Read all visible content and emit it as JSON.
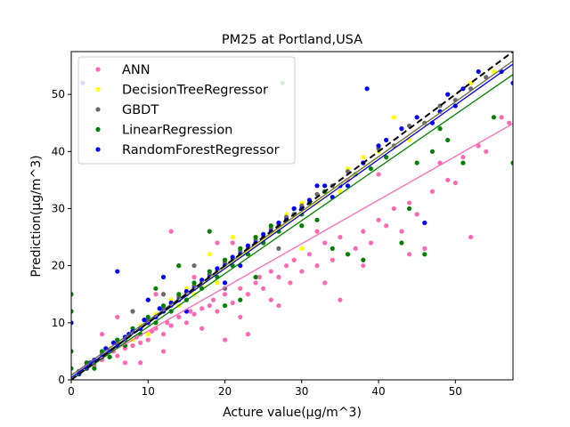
{
  "chart_data": {
    "type": "scatter",
    "title": "PM25 at Portland,USA",
    "xlabel": "Acture value(μg/m^3)",
    "ylabel": "Prediction(μg/m^3)",
    "xlim": [
      0,
      57.5
    ],
    "ylim": [
      0,
      57.5
    ],
    "xticks": [
      0,
      10,
      20,
      30,
      40,
      50
    ],
    "yticks": [
      0,
      10,
      20,
      30,
      40,
      50
    ],
    "grid": false,
    "legend_position": "top-left",
    "reference_line": {
      "style": "dashed",
      "color": "#000000",
      "slope": 1,
      "intercept": 0
    },
    "series": [
      {
        "name": "ANN",
        "color": "#ff69b4",
        "fit": {
          "slope": 0.765,
          "intercept": 0.9
        },
        "points": [
          [
            2,
            3
          ],
          [
            3,
            2.5
          ],
          [
            4,
            3.5
          ],
          [
            5,
            4
          ],
          [
            5.5,
            5
          ],
          [
            6,
            4.2
          ],
          [
            7,
            5.5
          ],
          [
            8,
            6
          ],
          [
            8.5,
            7.5
          ],
          [
            9,
            6.5
          ],
          [
            10,
            7
          ],
          [
            10.5,
            8.5
          ],
          [
            11,
            9
          ],
          [
            12,
            8
          ],
          [
            12.5,
            10
          ],
          [
            13,
            9.5
          ],
          [
            14,
            11
          ],
          [
            15,
            10
          ],
          [
            15.5,
            12
          ],
          [
            16,
            11.5
          ],
          [
            17,
            12.5
          ],
          [
            18,
            13
          ],
          [
            18.5,
            14
          ],
          [
            19,
            12
          ],
          [
            20,
            15
          ],
          [
            21,
            13.5
          ],
          [
            22,
            16
          ],
          [
            23,
            15
          ],
          [
            24,
            17
          ],
          [
            24.5,
            18
          ],
          [
            25,
            16
          ],
          [
            26,
            19
          ],
          [
            27,
            18
          ],
          [
            28,
            20
          ],
          [
            28.5,
            17
          ],
          [
            29,
            21
          ],
          [
            30,
            19
          ],
          [
            31,
            22
          ],
          [
            32,
            20
          ],
          [
            33,
            24
          ],
          [
            34,
            21
          ],
          [
            35,
            25
          ],
          [
            36,
            22
          ],
          [
            37,
            23
          ],
          [
            38,
            26
          ],
          [
            39,
            24
          ],
          [
            40,
            28
          ],
          [
            41,
            27
          ],
          [
            42,
            30
          ],
          [
            43,
            26
          ],
          [
            44,
            31
          ],
          [
            45,
            29
          ],
          [
            46,
            23
          ],
          [
            47,
            33
          ],
          [
            48,
            38
          ],
          [
            49,
            35
          ],
          [
            50,
            34.5
          ],
          [
            51,
            39
          ],
          [
            52,
            25
          ],
          [
            53,
            41
          ],
          [
            54,
            40
          ],
          [
            56,
            46
          ],
          [
            57,
            45
          ],
          [
            13,
            26
          ],
          [
            20,
            7
          ],
          [
            19,
            24
          ],
          [
            16,
            18
          ],
          [
            10,
            14
          ],
          [
            6,
            11
          ],
          [
            4,
            8
          ],
          [
            7,
            3
          ],
          [
            12,
            5
          ],
          [
            17,
            9
          ],
          [
            22,
            11
          ],
          [
            27,
            13
          ],
          [
            33,
            17
          ],
          [
            35,
            14
          ],
          [
            38,
            20
          ],
          [
            44,
            22
          ],
          [
            30,
            30
          ],
          [
            36,
            35
          ],
          [
            25,
            24
          ],
          [
            14,
            20
          ],
          [
            26,
            14
          ],
          [
            23,
            8
          ],
          [
            9,
            3
          ],
          [
            11,
            15
          ],
          [
            21,
            24
          ],
          [
            32,
            26
          ],
          [
            40,
            36
          ]
        ]
      },
      {
        "name": "DecisionTreeRegressor",
        "color": "#ffff00",
        "fit": {
          "slope": 0.965,
          "intercept": 0.4
        },
        "points": [
          [
            2,
            2
          ],
          [
            3,
            3.5
          ],
          [
            4,
            4
          ],
          [
            5,
            5.5
          ],
          [
            6,
            6
          ],
          [
            7,
            7.5
          ],
          [
            8,
            7
          ],
          [
            9,
            9.5
          ],
          [
            10,
            10
          ],
          [
            11,
            11.5
          ],
          [
            12,
            12
          ],
          [
            12,
            15
          ],
          [
            13,
            14
          ],
          [
            14,
            13
          ],
          [
            15,
            16
          ],
          [
            16,
            15
          ],
          [
            17,
            16.5
          ],
          [
            18,
            18.5
          ],
          [
            19,
            17
          ],
          [
            20,
            21
          ],
          [
            21,
            20
          ],
          [
            22,
            23
          ],
          [
            23,
            22
          ],
          [
            24,
            25
          ],
          [
            25,
            24
          ],
          [
            26,
            27
          ],
          [
            27,
            26
          ],
          [
            28,
            29
          ],
          [
            30,
            31
          ],
          [
            32,
            31
          ],
          [
            33,
            34
          ],
          [
            35,
            33
          ],
          [
            36,
            37
          ],
          [
            38,
            39
          ],
          [
            40,
            40
          ],
          [
            42,
            46
          ],
          [
            44,
            42
          ],
          [
            46,
            45
          ],
          [
            48,
            47
          ],
          [
            50,
            49
          ],
          [
            52,
            52
          ],
          [
            55,
            54
          ],
          [
            21,
            25
          ],
          [
            18,
            22
          ],
          [
            10,
            8
          ],
          [
            30,
            23
          ]
        ]
      },
      {
        "name": "GBDT",
        "color": "#696969",
        "fit": {
          "slope": 0.958,
          "intercept": 0.8
        },
        "points": [
          [
            2,
            2.5
          ],
          [
            3,
            3
          ],
          [
            4,
            4.5
          ],
          [
            5,
            5
          ],
          [
            6,
            6.5
          ],
          [
            7,
            7
          ],
          [
            8,
            8.5
          ],
          [
            9,
            9
          ],
          [
            10,
            10.5
          ],
          [
            11,
            11
          ],
          [
            12,
            12.5
          ],
          [
            13,
            13
          ],
          [
            14,
            14.5
          ],
          [
            15,
            15
          ],
          [
            16,
            16.5
          ],
          [
            17,
            17
          ],
          [
            18,
            18.5
          ],
          [
            19,
            19
          ],
          [
            20,
            20.5
          ],
          [
            21,
            21
          ],
          [
            22,
            22.5
          ],
          [
            23,
            23
          ],
          [
            24,
            24.5
          ],
          [
            25,
            25
          ],
          [
            26,
            26.5
          ],
          [
            27,
            27
          ],
          [
            28,
            28.5
          ],
          [
            29,
            29
          ],
          [
            30,
            30.5
          ],
          [
            31,
            31
          ],
          [
            32,
            32.5
          ],
          [
            34,
            34
          ],
          [
            36,
            36.5
          ],
          [
            38,
            38
          ],
          [
            40,
            40.5
          ],
          [
            42,
            41
          ],
          [
            44,
            44.5
          ],
          [
            46,
            45
          ],
          [
            48,
            48
          ],
          [
            50,
            49
          ],
          [
            52,
            51
          ],
          [
            54,
            53
          ],
          [
            16,
            20
          ],
          [
            20,
            16
          ],
          [
            27,
            23
          ],
          [
            12,
            15
          ],
          [
            8,
            12
          ]
        ]
      },
      {
        "name": "LinearRegression",
        "color": "#008000",
        "fit": {
          "slope": 0.93,
          "intercept": 0.0
        },
        "points": [
          [
            0,
            15
          ],
          [
            0,
            12
          ],
          [
            0,
            10
          ],
          [
            0,
            5
          ],
          [
            0,
            2
          ],
          [
            1,
            1.5
          ],
          [
            2,
            3
          ],
          [
            3,
            2
          ],
          [
            4,
            5
          ],
          [
            5,
            4
          ],
          [
            6,
            7
          ],
          [
            7,
            6
          ],
          [
            8,
            9
          ],
          [
            9,
            8
          ],
          [
            10,
            11
          ],
          [
            11,
            10
          ],
          [
            12,
            13
          ],
          [
            13,
            12
          ],
          [
            14,
            15
          ],
          [
            15,
            14
          ],
          [
            16,
            17
          ],
          [
            17,
            16
          ],
          [
            18,
            19
          ],
          [
            19,
            18
          ],
          [
            20,
            21
          ],
          [
            21,
            20
          ],
          [
            22,
            23
          ],
          [
            23,
            22
          ],
          [
            24,
            25
          ],
          [
            25,
            24
          ],
          [
            26,
            27
          ],
          [
            27,
            26
          ],
          [
            28,
            28
          ],
          [
            29,
            30
          ],
          [
            30,
            29
          ],
          [
            31,
            31
          ],
          [
            33,
            33
          ],
          [
            35,
            34
          ],
          [
            37,
            36
          ],
          [
            39,
            37
          ],
          [
            41,
            39
          ],
          [
            43,
            24
          ],
          [
            45,
            38
          ],
          [
            46,
            22
          ],
          [
            47,
            40
          ],
          [
            49,
            42
          ],
          [
            51,
            38
          ],
          [
            57.5,
            38
          ],
          [
            27.5,
            52
          ],
          [
            34,
            23
          ],
          [
            32,
            28
          ],
          [
            36,
            22
          ],
          [
            38,
            21
          ],
          [
            44,
            30
          ],
          [
            48,
            44
          ],
          [
            55,
            46
          ],
          [
            20,
            13
          ],
          [
            14,
            20
          ],
          [
            11,
            16
          ],
          [
            24,
            18
          ],
          [
            22,
            14
          ],
          [
            18,
            26
          ],
          [
            30,
            27
          ]
        ]
      },
      {
        "name": "RandomForestRegressor",
        "color": "#0000ff",
        "fit": {
          "slope": 0.955,
          "intercept": 0.4
        },
        "points": [
          [
            0,
            10
          ],
          [
            1,
            1
          ],
          [
            2,
            2
          ],
          [
            2.5,
            3
          ],
          [
            3,
            3.5
          ],
          [
            4,
            4
          ],
          [
            4.5,
            5.5
          ],
          [
            5,
            5
          ],
          [
            5.5,
            6.5
          ],
          [
            6,
            6
          ],
          [
            6,
            19
          ],
          [
            7,
            7.5
          ],
          [
            7.5,
            8
          ],
          [
            8,
            8.5
          ],
          [
            9,
            9
          ],
          [
            9.5,
            10.5
          ],
          [
            10,
            10
          ],
          [
            11,
            11
          ],
          [
            11.5,
            12.5
          ],
          [
            12,
            12
          ],
          [
            13,
            13.5
          ],
          [
            14,
            14
          ],
          [
            15,
            15.5
          ],
          [
            16,
            16
          ],
          [
            17,
            17.5
          ],
          [
            18,
            18
          ],
          [
            19,
            19.5
          ],
          [
            20,
            20
          ],
          [
            21,
            21.5
          ],
          [
            22,
            22
          ],
          [
            23,
            23.5
          ],
          [
            24,
            24
          ],
          [
            25,
            25.5
          ],
          [
            26,
            26
          ],
          [
            27,
            27.5
          ],
          [
            28,
            28
          ],
          [
            29,
            30
          ],
          [
            30,
            30
          ],
          [
            31,
            31.5
          ],
          [
            32,
            34
          ],
          [
            33,
            34
          ],
          [
            34,
            32
          ],
          [
            35,
            34
          ],
          [
            36,
            34
          ],
          [
            38,
            38
          ],
          [
            40,
            41
          ],
          [
            41,
            42
          ],
          [
            43,
            44
          ],
          [
            45,
            46
          ],
          [
            46,
            27.5
          ],
          [
            47,
            45
          ],
          [
            48,
            47
          ],
          [
            49,
            50
          ],
          [
            50,
            48
          ],
          [
            51,
            51
          ],
          [
            53,
            54
          ],
          [
            56,
            54
          ],
          [
            57.5,
            52
          ],
          [
            38.5,
            51
          ],
          [
            1.5,
            52
          ],
          [
            12,
            18
          ],
          [
            10,
            14
          ],
          [
            20,
            17
          ],
          [
            22,
            20
          ],
          [
            15,
            12
          ]
        ]
      }
    ]
  }
}
